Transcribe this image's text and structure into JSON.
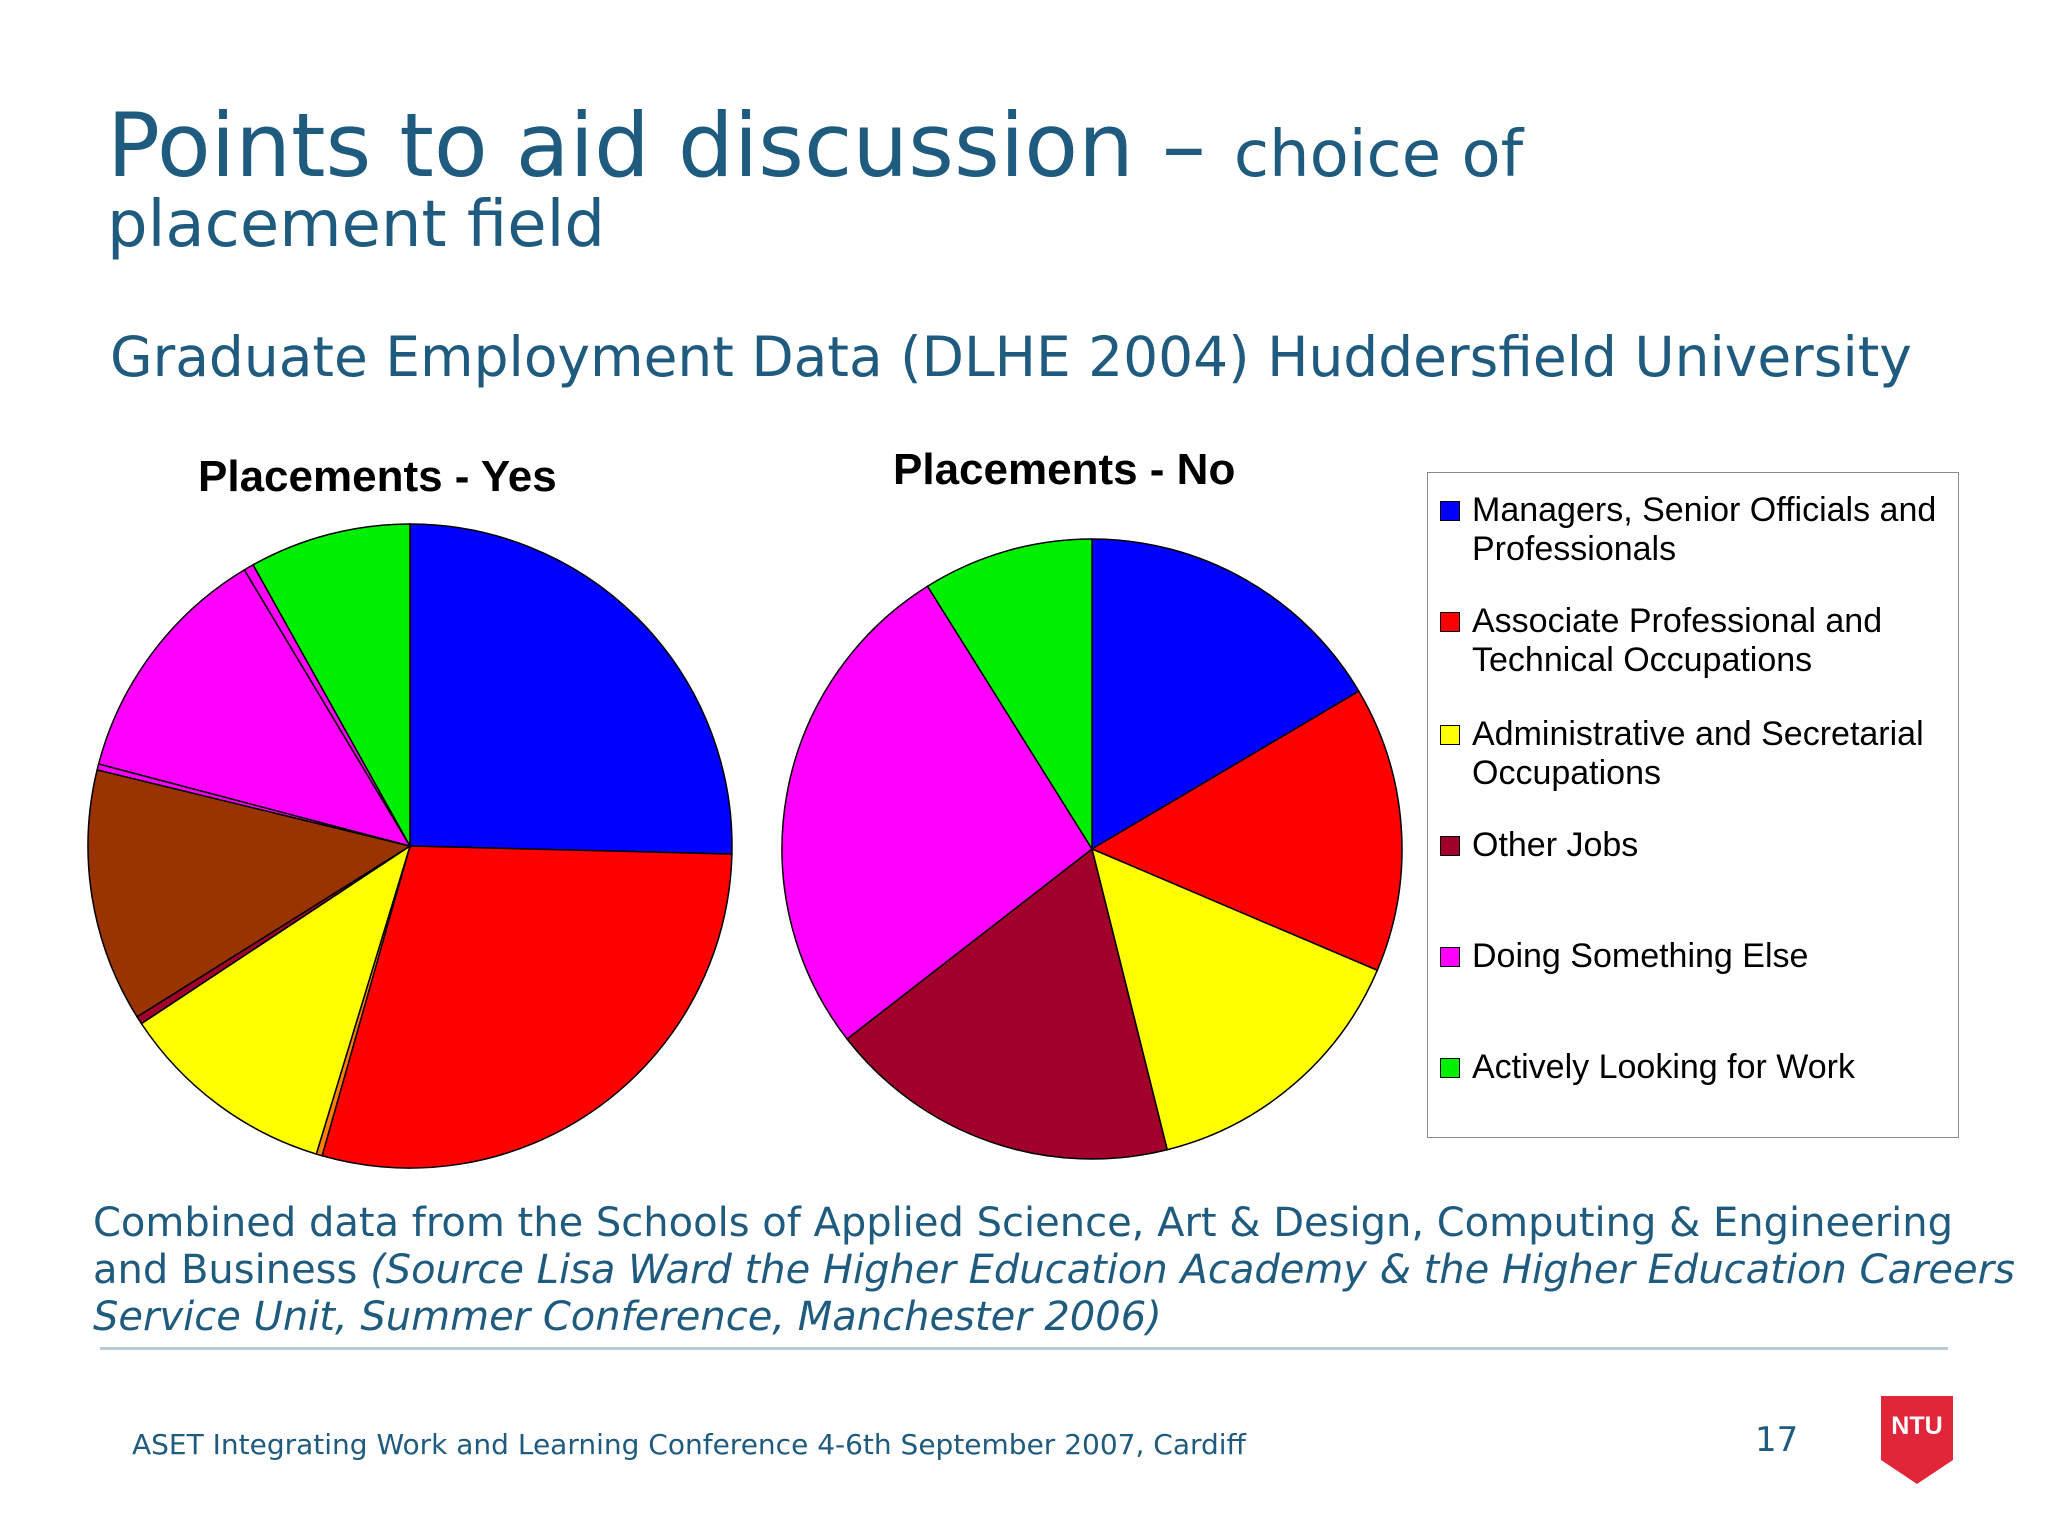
{
  "slide": {
    "title_main": "Points to aid discussion – ",
    "title_sub": "choice of",
    "title_line2": "placement field",
    "subtitle": "Graduate Employment Data (DLHE 2004) Huddersfield University",
    "note_plain": "Combined data from the Schools of Applied Science, Art & Design, Computing & Engineering and Business ",
    "note_source": "(Source Lisa Ward the Higher Education Academy & the Higher Education Careers Service Unit, Summer Conference, Manchester 2006)",
    "footer": "ASET Integrating Work and Learning Conference 4-6th September 2007, Cardiff",
    "page_number": "17",
    "logo_text": "NTU",
    "logo_color": "#e2263a"
  },
  "legend": [
    {
      "label": "Managers, Senior Officials and Professionals",
      "color": "#0000ff"
    },
    {
      "label": "Associate Professional and Technical Occupations",
      "color": "#ff0000"
    },
    {
      "label": "Administrative and Secretarial Occupations",
      "color": "#ffff00"
    },
    {
      "label": "Other Jobs",
      "color": "#a0002a"
    },
    {
      "label": "Doing Something Else",
      "color": "#ff00ff"
    },
    {
      "label": "Actively Looking for Work",
      "color": "#00ee00"
    }
  ],
  "chart_data": [
    {
      "type": "pie",
      "title": "Placements - Yes",
      "slices": [
        {
          "value": 25.4,
          "color": "#0000ff"
        },
        {
          "value": 29.0,
          "color": "#ff0000"
        },
        {
          "value": 0.3,
          "color": "#ff8000"
        },
        {
          "value": 11.0,
          "color": "#ffff00"
        },
        {
          "value": 0.4,
          "color": "#a0002a"
        },
        {
          "value": 12.7,
          "color": "#993300"
        },
        {
          "value": 0.3,
          "color": "#ff00ff"
        },
        {
          "value": 12.3,
          "color": "#ff00ff"
        },
        {
          "value": 0.5,
          "color": "#ff00ff"
        },
        {
          "value": 8.1,
          "color": "#00ee00"
        }
      ]
    },
    {
      "type": "pie",
      "title": "Placements - No",
      "slices": [
        {
          "value": 16.5,
          "color": "#0000ff"
        },
        {
          "value": 14.9,
          "color": "#ff0000"
        },
        {
          "value": 14.7,
          "color": "#ffff00"
        },
        {
          "value": 18.4,
          "color": "#a0002a"
        },
        {
          "value": 26.6,
          "color": "#ff00ff"
        },
        {
          "value": 8.9,
          "color": "#00ee00"
        }
      ]
    }
  ]
}
